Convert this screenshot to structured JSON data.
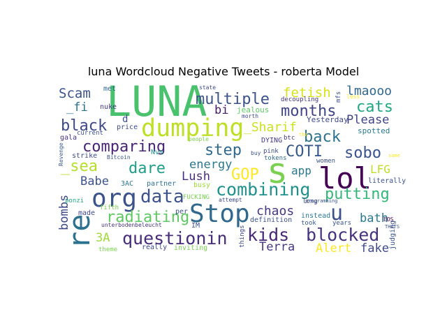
{
  "chart_data": {
    "type": "wordcloud",
    "title": "luna Wordcloud Negative Tweets - roberta Model",
    "words": [
      {
        "text": "LUNA",
        "color": "#4ac16d"
      },
      {
        "text": "dumping",
        "color": "#bddf26"
      },
      {
        "text": "s",
        "color": "#7ad151"
      },
      {
        "text": "lol",
        "color": "#440154"
      },
      {
        "text": "org",
        "color": "#3b528b"
      },
      {
        "text": "Stop",
        "color": "#31688e"
      },
      {
        "text": "re",
        "color": "#2c728e"
      },
      {
        "text": "multiple",
        "color": "#3b528b"
      },
      {
        "text": "months",
        "color": "#414487"
      },
      {
        "text": "combining",
        "color": "#21918c"
      },
      {
        "text": "questionin",
        "color": "#472d7b"
      },
      {
        "text": "kids",
        "color": "#482878"
      },
      {
        "text": "blocked",
        "color": "#46327e"
      },
      {
        "text": "data",
        "color": "#3b528b"
      },
      {
        "text": "comparing",
        "color": "#482475"
      },
      {
        "text": "step",
        "color": "#31688e"
      },
      {
        "text": "back",
        "color": "#2c728e"
      },
      {
        "text": "black",
        "color": "#3e4989"
      },
      {
        "text": "dare",
        "color": "#1f9e89"
      },
      {
        "text": "sobo",
        "color": "#3b528b"
      },
      {
        "text": "COTI",
        "color": "#38598c"
      },
      {
        "text": "GOP",
        "color": "#fde725"
      },
      {
        "text": "putting",
        "color": "#35b779"
      },
      {
        "text": "radiating",
        "color": "#5ec962"
      },
      {
        "text": "chaos",
        "color": "#443983"
      },
      {
        "text": "_sea",
        "color": "#b5de2b"
      },
      {
        "text": "Scam",
        "color": "#3b528b"
      },
      {
        "text": "fetish",
        "color": "#d8e219"
      },
      {
        "text": "lmaooo",
        "color": "#31688e"
      },
      {
        "text": "cats",
        "color": "#22a884"
      },
      {
        "text": "_Sharif",
        "color": "#cde11d"
      },
      {
        "text": "Please",
        "color": "#414487"
      },
      {
        "text": "energy",
        "color": "#2a788e"
      },
      {
        "text": "Lush",
        "color": "#472f7d"
      },
      {
        "text": "Babe",
        "color": "#3b528b"
      },
      {
        "text": "bombs",
        "color": "#3e4989"
      },
      {
        "text": "bath",
        "color": "#2a788e"
      },
      {
        "text": "Terra",
        "color": "#443983"
      },
      {
        "text": "Alert",
        "color": "#fde725"
      },
      {
        "text": "fake",
        "color": "#3e4a89"
      },
      {
        "text": "u",
        "color": "#3b528b"
      },
      {
        "text": "bi",
        "color": "#481a6c"
      },
      {
        "text": "_fi",
        "color": "#2d708e"
      },
      {
        "text": "3A",
        "color": "#a0da39"
      },
      {
        "text": "app",
        "color": "#2a788e"
      },
      {
        "text": "LFG",
        "color": "#bddf26"
      },
      {
        "text": "d",
        "color": "#3b528b"
      },
      {
        "text": "nuke",
        "color": "#443983"
      },
      {
        "text": "met",
        "color": "#31688e"
      },
      {
        "text": "price",
        "color": "#3e4989"
      },
      {
        "text": "current",
        "color": "#3b528b"
      },
      {
        "text": "gala",
        "color": "#46327e"
      },
      {
        "text": "Bitcoin",
        "color": "#3b528b"
      },
      {
        "text": "strike",
        "color": "#3e4989"
      },
      {
        "text": "Revenge",
        "color": "#38598c"
      },
      {
        "text": "Nvm",
        "color": "#21918c"
      },
      {
        "text": "3AC",
        "color": "#2a788e"
      },
      {
        "text": "partner",
        "color": "#2c728e"
      },
      {
        "text": "busy",
        "color": "#a0da39"
      },
      {
        "text": "FUCKING",
        "color": "#7ad151"
      },
      {
        "text": "attempt",
        "color": "#3e4989"
      },
      {
        "text": "ponzi",
        "color": "#22a884"
      },
      {
        "text": "fifth",
        "color": "#7ad151"
      },
      {
        "text": "made",
        "color": "#3e4989"
      },
      {
        "text": "unterbodenbeleucht",
        "color": "#46327e"
      },
      {
        "text": "per",
        "color": "#3b528b"
      },
      {
        "text": "IM",
        "color": "#3b528b"
      },
      {
        "text": "things",
        "color": "#3e4989"
      },
      {
        "text": "definition",
        "color": "#3b528b"
      },
      {
        "text": "instead",
        "color": "#2a788e"
      },
      {
        "text": "took",
        "color": "#38598c"
      },
      {
        "text": "years",
        "color": "#3b528b"
      },
      {
        "text": "really",
        "color": "#3e4989"
      },
      {
        "text": "inviting",
        "color": "#7ad151"
      },
      {
        "text": "theme",
        "color": "#7ad151"
      },
      {
        "text": "state",
        "color": "#3e4989"
      },
      {
        "text": "decoupling",
        "color": "#46327e"
      },
      {
        "text": "mfs",
        "color": "#3b528b"
      },
      {
        "text": "less",
        "color": "#fde725"
      },
      {
        "text": "jealous",
        "color": "#5ec962"
      },
      {
        "text": "morth",
        "color": "#3e4989"
      },
      {
        "text": "DYING",
        "color": "#443983"
      },
      {
        "text": "people",
        "color": "#7ad151"
      },
      {
        "text": "Yesterday",
        "color": "#3e4989"
      },
      {
        "text": "spotted",
        "color": "#2a788e"
      },
      {
        "text": "buy",
        "color": "#3b528b"
      },
      {
        "text": "pink",
        "color": "#3e4989"
      },
      {
        "text": "tokens",
        "color": "#31688e"
      },
      {
        "text": "women",
        "color": "#3b528b"
      },
      {
        "text": "btc",
        "color": "#443983"
      },
      {
        "text": "tha",
        "color": "#fde725"
      },
      {
        "text": "literally",
        "color": "#3b528b"
      },
      {
        "text": "long",
        "color": "#3e4989"
      },
      {
        "text": "programming",
        "color": "#3b528b"
      },
      {
        "text": "EOS",
        "color": "#440154"
      },
      {
        "text": "THATS",
        "color": "#3b528b"
      },
      {
        "text": "judging",
        "color": "#3b528b"
      },
      {
        "text": "same",
        "color": "#fde725"
      }
    ]
  }
}
